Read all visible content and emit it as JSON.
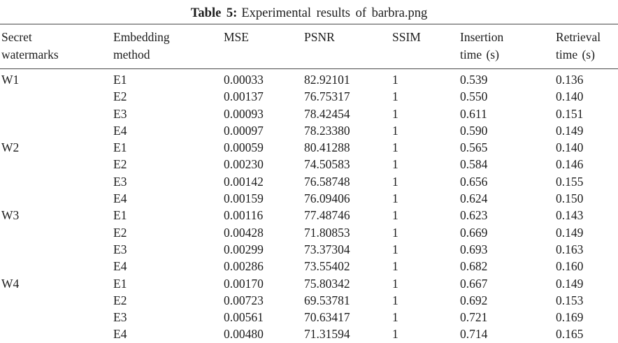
{
  "caption": {
    "label": "Table 5:",
    "text": "Experimental results of barbra.png"
  },
  "table": {
    "headers": [
      {
        "line1": "Secret",
        "line2": "watermarks"
      },
      {
        "line1": "Embedding",
        "line2": "method"
      },
      {
        "line1": "MSE",
        "line2": ""
      },
      {
        "line1": "PSNR",
        "line2": ""
      },
      {
        "line1": "SSIM",
        "line2": ""
      },
      {
        "line1": "Insertion",
        "line2": "time (s)"
      },
      {
        "line1": "Retrieval",
        "line2": "time (s)"
      }
    ],
    "rows": [
      {
        "watermark": "W1",
        "method": "E1",
        "mse": "0.00033",
        "psnr": "82.92101",
        "ssim": "1",
        "insertion": "0.539",
        "retrieval": "0.136"
      },
      {
        "watermark": "",
        "method": "E2",
        "mse": "0.00137",
        "psnr": "76.75317",
        "ssim": "1",
        "insertion": "0.550",
        "retrieval": "0.140"
      },
      {
        "watermark": "",
        "method": "E3",
        "mse": "0.00093",
        "psnr": "78.42454",
        "ssim": "1",
        "insertion": "0.611",
        "retrieval": "0.151"
      },
      {
        "watermark": "",
        "method": "E4",
        "mse": "0.00097",
        "psnr": "78.23380",
        "ssim": "1",
        "insertion": "0.590",
        "retrieval": "0.149"
      },
      {
        "watermark": "W2",
        "method": "E1",
        "mse": "0.00059",
        "psnr": "80.41288",
        "ssim": "1",
        "insertion": "0.565",
        "retrieval": "0.140"
      },
      {
        "watermark": "",
        "method": "E2",
        "mse": "0.00230",
        "psnr": "74.50583",
        "ssim": "1",
        "insertion": "0.584",
        "retrieval": "0.146"
      },
      {
        "watermark": "",
        "method": "E3",
        "mse": "0.00142",
        "psnr": "76.58748",
        "ssim": "1",
        "insertion": "0.656",
        "retrieval": "0.155"
      },
      {
        "watermark": "",
        "method": "E4",
        "mse": "0.00159",
        "psnr": "76.09406",
        "ssim": "1",
        "insertion": "0.624",
        "retrieval": "0.150"
      },
      {
        "watermark": "W3",
        "method": "E1",
        "mse": "0.00116",
        "psnr": "77.48746",
        "ssim": "1",
        "insertion": "0.623",
        "retrieval": "0.143"
      },
      {
        "watermark": "",
        "method": "E2",
        "mse": "0.00428",
        "psnr": "71.80853",
        "ssim": "1",
        "insertion": "0.669",
        "retrieval": "0.149"
      },
      {
        "watermark": "",
        "method": "E3",
        "mse": "0.00299",
        "psnr": "73.37304",
        "ssim": "1",
        "insertion": "0.693",
        "retrieval": "0.163"
      },
      {
        "watermark": "",
        "method": "E4",
        "mse": "0.00286",
        "psnr": "73.55402",
        "ssim": "1",
        "insertion": "0.682",
        "retrieval": "0.160"
      },
      {
        "watermark": "W4",
        "method": "E1",
        "mse": "0.00170",
        "psnr": "75.80342",
        "ssim": "1",
        "insertion": "0.667",
        "retrieval": "0.149"
      },
      {
        "watermark": "",
        "method": "E2",
        "mse": "0.00723",
        "psnr": "69.53781",
        "ssim": "1",
        "insertion": "0.692",
        "retrieval": "0.153"
      },
      {
        "watermark": "",
        "method": "E3",
        "mse": "0.00561",
        "psnr": "70.63417",
        "ssim": "1",
        "insertion": "0.721",
        "retrieval": "0.169"
      },
      {
        "watermark": "",
        "method": "E4",
        "mse": "0.00480",
        "psnr": "71.31594",
        "ssim": "1",
        "insertion": "0.714",
        "retrieval": "0.165"
      }
    ]
  },
  "chart_data": {
    "type": "table",
    "title": "Table 5: Experimental results of barbra.png",
    "columns": [
      "Secret watermarks",
      "Embedding method",
      "MSE",
      "PSNR",
      "SSIM",
      "Insertion time (s)",
      "Retrieval time (s)"
    ],
    "rows": [
      [
        "W1",
        "E1",
        0.00033,
        82.92101,
        1,
        0.539,
        0.136
      ],
      [
        "W1",
        "E2",
        0.00137,
        76.75317,
        1,
        0.55,
        0.14
      ],
      [
        "W1",
        "E3",
        0.00093,
        78.42454,
        1,
        0.611,
        0.151
      ],
      [
        "W1",
        "E4",
        0.00097,
        78.2338,
        1,
        0.59,
        0.149
      ],
      [
        "W2",
        "E1",
        0.00059,
        80.41288,
        1,
        0.565,
        0.14
      ],
      [
        "W2",
        "E2",
        0.0023,
        74.50583,
        1,
        0.584,
        0.146
      ],
      [
        "W2",
        "E3",
        0.00142,
        76.58748,
        1,
        0.656,
        0.155
      ],
      [
        "W2",
        "E4",
        0.00159,
        76.09406,
        1,
        0.624,
        0.15
      ],
      [
        "W3",
        "E1",
        0.00116,
        77.48746,
        1,
        0.623,
        0.143
      ],
      [
        "W3",
        "E2",
        0.00428,
        71.80853,
        1,
        0.669,
        0.149
      ],
      [
        "W3",
        "E3",
        0.00299,
        73.37304,
        1,
        0.693,
        0.163
      ],
      [
        "W3",
        "E4",
        0.00286,
        73.55402,
        1,
        0.682,
        0.16
      ],
      [
        "W4",
        "E1",
        0.0017,
        75.80342,
        1,
        0.667,
        0.149
      ],
      [
        "W4",
        "E2",
        0.00723,
        69.53781,
        1,
        0.692,
        0.153
      ],
      [
        "W4",
        "E3",
        0.00561,
        70.63417,
        1,
        0.721,
        0.169
      ],
      [
        "W4",
        "E4",
        0.0048,
        71.31594,
        1,
        0.714,
        0.165
      ]
    ]
  }
}
